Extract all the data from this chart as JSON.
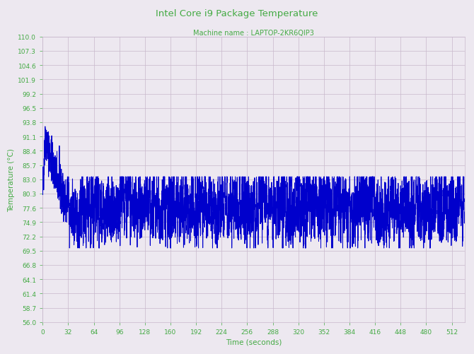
{
  "title": "Intel Core i9 Package Temperature",
  "subtitle": "Machine name : LAPTOP-2KR6QIP3",
  "xlabel": "Time (seconds)",
  "ylabel": "Temperature (°C)",
  "xlim": [
    0,
    528
  ],
  "ylim": [
    56.0,
    110.0
  ],
  "xticks": [
    0,
    32,
    64,
    96,
    128,
    160,
    192,
    224,
    256,
    288,
    320,
    352,
    384,
    416,
    448,
    480,
    512
  ],
  "yticks": [
    56.0,
    58.7,
    61.4,
    64.1,
    66.8,
    69.5,
    72.2,
    74.9,
    77.6,
    80.3,
    83.0,
    85.7,
    88.4,
    91.1,
    93.8,
    96.5,
    99.2,
    101.9,
    104.6,
    107.3,
    110.0
  ],
  "line_color": "#0000cc",
  "background_color": "#ede8f0",
  "grid_color": "#c8b8cc",
  "title_color": "#44aa44",
  "subtitle_color": "#44aa44",
  "label_color": "#44aa44",
  "tick_color": "#44aa44",
  "line_width": 0.7,
  "total_seconds": 528,
  "seed": 42
}
